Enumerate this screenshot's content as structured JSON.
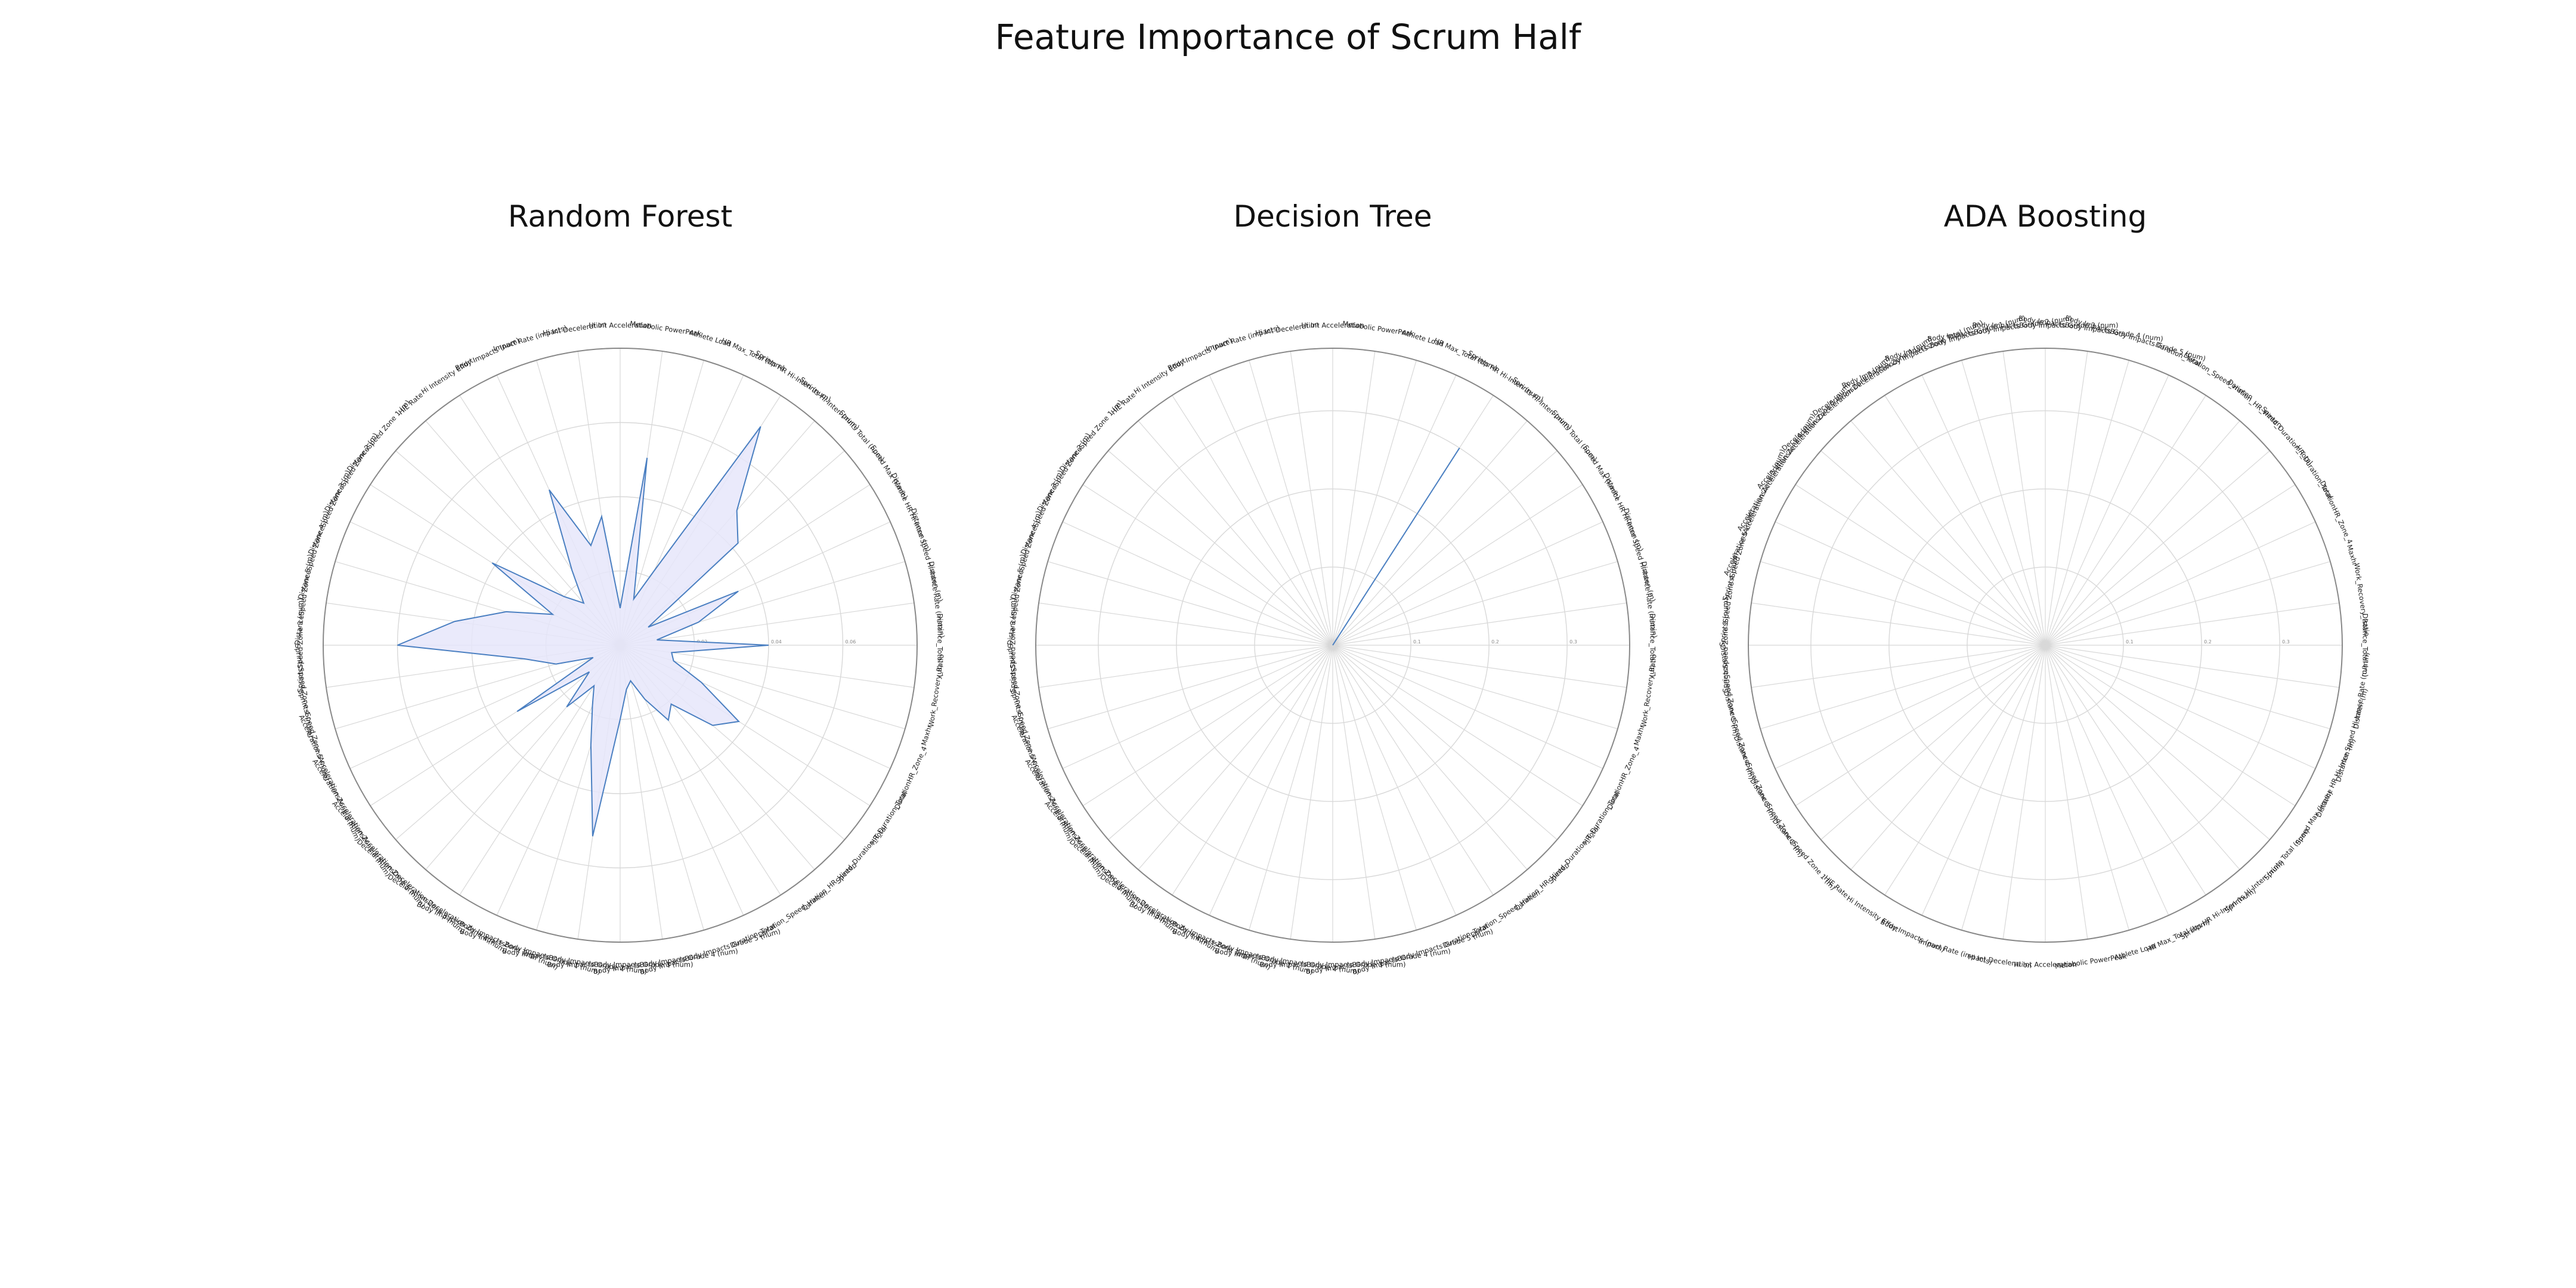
{
  "figure": {
    "title": "Feature Importance of Scrum Half"
  },
  "chart_data": [
    {
      "type": "radar",
      "title": "Random Forest",
      "categories": [
        "Distance_Total (m)",
        "Distance Rate (m/min)",
        "Distance Speed Hi-Inten (m)",
        "Distance HR Hi-Inten (m)",
        "Speed Max (km/h)",
        "Sprints Total (num)",
        "Sprints Hi-Inten (num)",
        "Sprints HR Hi-Inten (num)",
        "HR Max_Total (bpm)",
        "Athlete Load",
        "Metabolic PowerPeak",
        "Hi Int Acceleration",
        "Hi Int Deceleration",
        "Impact Rate (impacts)",
        "Body Impacts (num)",
        "Hi Intensity Effort",
        "HIE Rate",
        "DistanceSpeed Zone 1 (m)",
        "DistanceSpeed Zone 2 (m)",
        "DistanceSpeed Zone 3 (m)",
        "DistanceSpeed Zone 4 (m)",
        "DistanceSpeed Zone 5 (m)",
        "SprintsSpeed Zone 3 (num)",
        "SprintsSpeed Zone 4 (num)",
        "SprintsSpeed Zone 5 (num)",
        "AccelerationsAcceleration Zone 3 (num)",
        "AccelerationsAcceleration Zone 4 (num)",
        "AccelerationsAcceleration Zone 5 (num)",
        "DecelerationsDeceleration Zone 3 (num)",
        "DecelerationsDeceleration Zone 4 (num)",
        "Body ImpactsBody Impacts Zone Total (num)",
        "Body ImpactsBody Impacts Grade 1 (num)",
        "Body ImpactsBody Impacts Grade 2 (num)",
        "Body ImpactsBody Impacts Grade 3 (num)",
        "Body ImpactsBody Impacts Grade 4 (num)",
        "Body ImpactsBody Impacts Grade 5 (num)",
        "Duration_Total",
        "Duration_Speed_Hinten",
        "Duration_HR_Hinten",
        "Speed_Duration_Total",
        "HR_Duration_Total",
        "DurationHR_Zone_4",
        "Maxhr",
        "Work_Recovery_Ratio"
      ],
      "values": [
        0.04,
        0.01,
        0.022,
        0.035,
        0.009,
        0.042,
        0.048,
        0.07,
        0.022,
        0.013,
        0.051,
        0.01,
        0.035,
        0.028,
        0.046,
        0.024,
        0.015,
        0.02,
        0.041,
        0.02,
        0.032,
        0.045,
        0.06,
        0.026,
        0.018,
        0.008,
        0.033,
        0.011,
        0.022,
        0.013,
        0.018,
        0.028,
        0.052,
        0.02,
        0.012,
        0.01,
        0.016,
        0.024,
        0.021,
        0.033,
        0.038,
        0.024,
        0.015,
        0.014
      ],
      "rmax": 0.08,
      "rticks": [
        0.02,
        0.04,
        0.06
      ]
    },
    {
      "type": "radar",
      "title": "Decision Tree",
      "categories": [
        "Distance_Total (m)",
        "Distance Rate (m/min)",
        "Distance Speed Hi-Inten (m)",
        "Distance HR Hi-Inten (m)",
        "Speed Max (km/h)",
        "Sprints Total (num)",
        "Sprints Hi-Inten (num)",
        "Sprints HR Hi-Inten (num)",
        "HR Max_Total (bpm)",
        "Athlete Load",
        "Metabolic PowerPeak",
        "Hi Int Acceleration",
        "Hi Int Deceleration",
        "Impact Rate (impacts)",
        "Body Impacts (num)",
        "Hi Intensity Effort",
        "HIE Rate",
        "DistanceSpeed Zone 1 (m)",
        "DistanceSpeed Zone 2 (m)",
        "DistanceSpeed Zone 3 (m)",
        "DistanceSpeed Zone 4 (m)",
        "DistanceSpeed Zone 5 (m)",
        "SprintsSpeed Zone 3 (num)",
        "SprintsSpeed Zone 4 (num)",
        "SprintsSpeed Zone 5 (num)",
        "AccelerationsAcceleration Zone 3 (num)",
        "AccelerationsAcceleration Zone 4 (num)",
        "AccelerationsAcceleration Zone 5 (num)",
        "DecelerationsDeceleration Zone 3 (num)",
        "DecelerationsDeceleration Zone 4 (num)",
        "Body ImpactsBody Impacts Zone Total (num)",
        "Body ImpactsBody Impacts Grade 1 (num)",
        "Body ImpactsBody Impacts Grade 2 (num)",
        "Body ImpactsBody Impacts Grade 3 (num)",
        "Body ImpactsBody Impacts Grade 4 (num)",
        "Body ImpactsBody Impacts Grade 5 (num)",
        "Duration_Total",
        "Duration_Speed_Hinten",
        "Duration_HR_Hinten",
        "Speed_Duration_Total",
        "HR_Duration_Total",
        "DurationHR_Zone_4",
        "Maxhr",
        "Work_Recovery_Ratio"
      ],
      "values": [
        0.0,
        0.0,
        0.0,
        0.0,
        0.0,
        0.0,
        0.0,
        0.3,
        0.0,
        0.0,
        0.0,
        0.0,
        0.0,
        0.0,
        0.0,
        0.0,
        0.0,
        0.0,
        0.0,
        0.0,
        0.0,
        0.0,
        0.0,
        0.0,
        0.0,
        0.0,
        0.0,
        0.0,
        0.0,
        0.0,
        0.0,
        0.0,
        0.0,
        0.0,
        0.0,
        0.0,
        0.0,
        0.0,
        0.0,
        0.0,
        0.0,
        0.0,
        0.0,
        0.0
      ],
      "rmax": 0.38,
      "rticks": [
        0.1,
        0.2,
        0.3
      ]
    },
    {
      "type": "radar",
      "title": "ADA Boosting",
      "categories": [
        "Distance_Total (m)",
        "Work_Recovery_Ratio",
        "Maxhr",
        "DurationHR_Zone_4",
        "HR_Duration_Total",
        "Speed_Duration_Total",
        "Duration_HR_Hinten",
        "Duration_Speed_Hinten",
        "Duration_Total",
        "Body ImpactsBody Impacts Grade 5 (num)",
        "Body ImpactsBody Impacts Grade 4 (num)",
        "Body ImpactsBody Impacts Grade 3 (num)",
        "Body ImpactsBody Impacts Grade 2 (num)",
        "Body ImpactsBody Impacts Grade 1 (num)",
        "Body ImpactsBody Impacts Zone Total (num)",
        "DecelerationsDeceleration Zone 4 (num)",
        "DecelerationsDeceleration Zone 3 (num)",
        "AccelerationsAcceleration Zone 5 (num)",
        "AccelerationsAcceleration Zone 4 (num)",
        "AccelerationsAcceleration Zone 3 (num)",
        "SprintsSpeed Zone 5 (num)",
        "SprintsSpeed Zone 4 (num)",
        "SprintsSpeed Zone 3 (num)",
        "DistanceSpeed Zone 5 (m)",
        "DistanceSpeed Zone 4 (m)",
        "DistanceSpeed Zone 3 (m)",
        "DistanceSpeed Zone 2 (m)",
        "DistanceSpeed Zone 1 (m)",
        "HIE Rate",
        "Hi Intensity Effort",
        "Body Impacts (num)",
        "Impact Rate (impacts)",
        "Hi Int Deceleration",
        "Hi Int Acceleration",
        "Metabolic PowerPeak",
        "Athlete Load",
        "HR Max_Total (bpm)",
        "Sprints HR Hi-Inten (num)",
        "Sprints Hi-Inten (num)",
        "Sprints Total (num)",
        "Speed Max (km/h)",
        "Distance HR Hi-Inten (m)",
        "Distance Speed Hi-Inten (m)",
        "Distance Rate (m/min)"
      ],
      "values": [
        0.0,
        0.0,
        0.0,
        0.0,
        0.0,
        0.0,
        0.0,
        0.0,
        0.0,
        0.0,
        0.0,
        0.0,
        0.0,
        0.0,
        0.0,
        0.0,
        0.0,
        0.0,
        0.0,
        0.0,
        0.0,
        0.0,
        0.0,
        0.0,
        0.0,
        0.0,
        0.0,
        0.0,
        0.0,
        0.0,
        0.0,
        0.0,
        0.0,
        0.0,
        0.0,
        0.0,
        0.0,
        0.0,
        0.0,
        0.0,
        0.0,
        0.0,
        0.0,
        0.0
      ],
      "rmax": 0.38,
      "rticks": [
        0.1,
        0.2,
        0.3
      ]
    }
  ],
  "colors": {
    "line": "#4a7fc1",
    "fill": "#e6e6fa",
    "grid": "#d8d8d8",
    "outer_ring": "#888888"
  }
}
